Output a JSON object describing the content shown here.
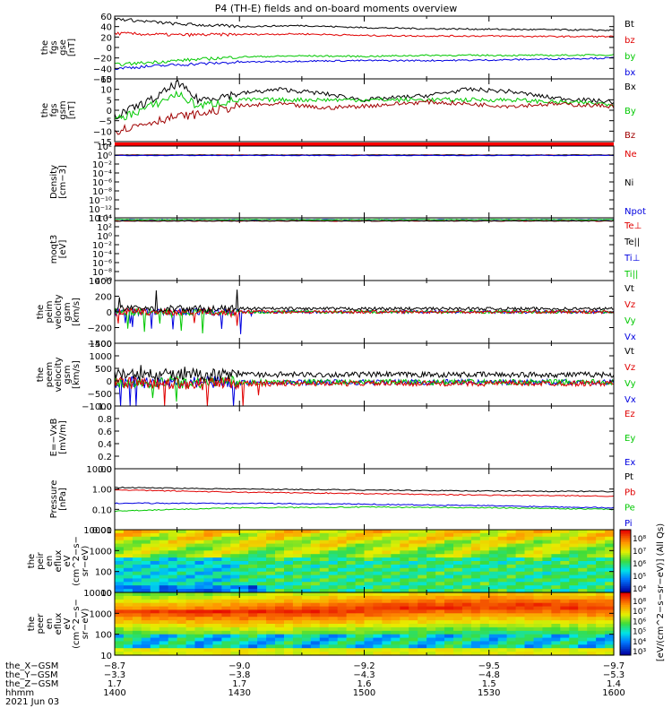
{
  "title": "P4 (TH-E) fields and on-board moments overview",
  "panels": [
    {
      "id": "fgs_gse",
      "ylabel": [
        "the",
        "fgs",
        "gse",
        "[nT]"
      ],
      "ticks": [
        "60",
        "40",
        "20",
        "0",
        "−20",
        "−40",
        "−60"
      ],
      "legend": [
        {
          "text": "Bt",
          "color": "#000000"
        },
        {
          "text": "bz",
          "color": "#e00000"
        },
        {
          "text": "by",
          "color": "#00c800"
        },
        {
          "text": "bx",
          "color": "#0000e0"
        }
      ]
    },
    {
      "id": "fgs_gsm",
      "ylabel": [
        "the",
        "fgs",
        "gsm",
        "[nT]"
      ],
      "ticks": [
        "15",
        "10",
        "5",
        "0",
        "−5",
        "−10",
        "−15"
      ],
      "legend": [
        {
          "text": "Bx",
          "color": "#000000"
        },
        {
          "text": "By",
          "color": "#00c800"
        },
        {
          "text": "Bz",
          "color": "#a00000"
        }
      ]
    },
    {
      "id": "density",
      "ylabel": [
        "Density",
        "[cm−3]"
      ],
      "ticks": [
        "10²",
        "10⁰",
        "10⁻²",
        "10⁻⁴",
        "10⁻⁶",
        "10⁻⁸",
        "10⁻¹⁰",
        "10⁻¹²",
        "10⁻¹⁴"
      ],
      "legend": [
        {
          "text": "Ne",
          "color": "#e00000"
        },
        {
          "text": "Ni",
          "color": "#000000"
        },
        {
          "text": "Npot",
          "color": "#0000e0"
        }
      ]
    },
    {
      "id": "moms_temp",
      "ylabel": [
        "moqt3",
        "[eV]"
      ],
      "ticks": [
        "10⁴",
        "10²",
        "10⁰",
        "10⁻²",
        "10⁻⁴",
        "10⁻⁶",
        "10⁻⁸",
        "10⁻¹⁰"
      ],
      "legend": [
        {
          "text": "Te⊥",
          "color": "#e00000"
        },
        {
          "text": "Te||",
          "color": "#000000"
        },
        {
          "text": "Ti⊥",
          "color": "#0000e0"
        },
        {
          "text": "Ti||",
          "color": "#00c800"
        }
      ]
    },
    {
      "id": "peim_vel",
      "ylabel": [
        "the",
        "peim",
        "velocity",
        "gsm",
        "[km/s]"
      ],
      "ticks": [
        "400",
        "200",
        "0",
        "−200",
        "−400"
      ],
      "legend": [
        {
          "text": "Vt",
          "color": "#000000"
        },
        {
          "text": "Vz",
          "color": "#e00000"
        },
        {
          "text": "Vy",
          "color": "#00c800"
        },
        {
          "text": "Vx",
          "color": "#0000e0"
        }
      ]
    },
    {
      "id": "peem_vel",
      "ylabel": [
        "the",
        "peem",
        "velocity",
        "gsm",
        "[km/s]"
      ],
      "ticks": [
        "1500",
        "1000",
        "500",
        "0",
        "−500",
        "−1000"
      ],
      "legend": [
        {
          "text": "Vt",
          "color": "#000000"
        },
        {
          "text": "Vz",
          "color": "#e00000"
        },
        {
          "text": "Vy",
          "color": "#00c800"
        },
        {
          "text": "Vx",
          "color": "#0000e0"
        }
      ]
    },
    {
      "id": "efield",
      "ylabel": [
        "E=−VxB",
        "[mV/m]"
      ],
      "ticks": [
        "1.0",
        "0.8",
        "0.6",
        "0.4",
        "0.2",
        "0.0"
      ],
      "legend": [
        {
          "text": "Ez",
          "color": "#e00000"
        },
        {
          "text": "Ey",
          "color": "#00c800"
        },
        {
          "text": "Ex",
          "color": "#0000e0"
        }
      ]
    },
    {
      "id": "pressure",
      "ylabel": [
        "Pressure",
        "[nPa]"
      ],
      "ticks": [
        "10.00",
        "1.00",
        "0.10",
        "0.01"
      ],
      "legend": [
        {
          "text": "Pt",
          "color": "#000000"
        },
        {
          "text": "Pb",
          "color": "#e00000"
        },
        {
          "text": "Pe",
          "color": "#00c800"
        },
        {
          "text": "Pi",
          "color": "#0000e0"
        }
      ]
    },
    {
      "id": "peir_spec",
      "ylabel": [
        "the",
        "peir",
        "en",
        "eflux",
        "eV",
        "(cm^2−s−",
        "sr−eV)"
      ],
      "ticks": [
        "10000",
        "1000",
        "100",
        "10"
      ],
      "legend": []
    },
    {
      "id": "peer_spec",
      "ylabel": [
        "the",
        "peer",
        "en",
        "eflux",
        "eV",
        "(cm^2−s−",
        "sr−eV)"
      ],
      "ticks": [
        "10000",
        "1000",
        "100",
        "10"
      ],
      "legend": []
    }
  ],
  "colorbars": [
    {
      "ticks": [
        "10⁸",
        "10⁷",
        "10⁶",
        "10⁵",
        "10⁴"
      ]
    },
    {
      "ticks": [
        "10⁸",
        "10⁷",
        "10⁶",
        "10⁵",
        "10⁴",
        "10³"
      ]
    }
  ],
  "colorbar_label": "[eV/(cm^2−s−sr−eV)] (All Qs)",
  "xaxis_rows": [
    {
      "label": "the_X−GSM",
      "values": [
        "−8.7",
        "−9.0",
        "−9.2",
        "−9.5",
        "−9.7"
      ]
    },
    {
      "label": "the_Y−GSM",
      "values": [
        "−3.3",
        "−3.8",
        "−4.3",
        "−4.8",
        "−5.3"
      ]
    },
    {
      "label": "the_Z−GSM",
      "values": [
        "1.7",
        "1.7",
        "1.6",
        "1.5",
        "1.4"
      ]
    },
    {
      "label": "hhmm",
      "values": [
        "1400",
        "1430",
        "1500",
        "1530",
        "1600"
      ]
    }
  ],
  "date_label": "2021 Jun 03",
  "chart_data": {
    "type": "line",
    "title": "P4 (TH-E) fields and on-board moments overview",
    "x_time_hhmm": [
      "1400",
      "1430",
      "1500",
      "1530",
      "1600"
    ],
    "x_range_minutes": [
      0,
      120
    ],
    "series_data": {
      "fgs_gse": {
        "ylim": [
          -60,
          60
        ],
        "series": [
          {
            "name": "Bt",
            "t": [
              0,
              15,
              30,
              45,
              60,
              75,
              90,
              105,
              120
            ],
            "v": [
              55,
              45,
              40,
              42,
              38,
              36,
              35,
              34,
              33
            ]
          },
          {
            "name": "bz",
            "t": [
              0,
              15,
              30,
              45,
              60,
              75,
              90,
              105,
              120
            ],
            "v": [
              27,
              24,
              25,
              26,
              23,
              22,
              22,
              21,
              21
            ]
          },
          {
            "name": "by",
            "t": [
              0,
              15,
              30,
              45,
              60,
              75,
              90,
              105,
              120
            ],
            "v": [
              -33,
              -25,
              -18,
              -16,
              -17,
              -15,
              -15,
              -15,
              -14
            ]
          },
          {
            "name": "bx",
            "t": [
              0,
              15,
              30,
              45,
              60,
              75,
              90,
              105,
              120
            ],
            "v": [
              -40,
              -33,
              -28,
              -26,
              -25,
              -25,
              -24,
              -22,
              -20
            ]
          }
        ]
      },
      "fgs_gsm": {
        "ylim": [
          -15,
          15
        ],
        "series": [
          {
            "name": "Bx",
            "t": [
              0,
              10,
              15,
              20,
              30,
              40,
              50,
              60,
              75,
              85,
              95,
              105,
              120
            ],
            "v": [
              -3,
              6,
              13,
              5,
              8,
              10,
              8,
              5,
              7,
              10,
              9,
              6,
              4
            ]
          },
          {
            "name": "By",
            "t": [
              0,
              10,
              15,
              20,
              30,
              40,
              50,
              60,
              75,
              85,
              95,
              105,
              120
            ],
            "v": [
              -5,
              3,
              8,
              2,
              5,
              5,
              5,
              5,
              5,
              5,
              5,
              4,
              3
            ]
          },
          {
            "name": "Bz",
            "t": [
              0,
              10,
              15,
              20,
              30,
              40,
              50,
              60,
              75,
              85,
              95,
              105,
              120
            ],
            "v": [
              -10,
              -5,
              -3,
              -2,
              2,
              3,
              1,
              2,
              4,
              3,
              2,
              3,
              2
            ]
          }
        ]
      },
      "density": {
        "ylog": true,
        "ylim": [
          1e-14,
          100.0
        ],
        "series": [
          {
            "name": "Ne",
            "value": 1.0
          },
          {
            "name": "Ni",
            "value": 1.0
          },
          {
            "name": "Npot",
            "value": 0.8
          }
        ]
      },
      "moms_temp": {
        "ylog": true,
        "ylim": [
          1e-10,
          10000.0
        ],
        "series": [
          {
            "name": "Te⊥",
            "value": 2000
          },
          {
            "name": "Te||",
            "value": 2000
          },
          {
            "name": "Ti⊥",
            "value": 4000
          },
          {
            "name": "Ti||",
            "value": 4000
          }
        ]
      },
      "peim_vel": {
        "ylim": [
          -400,
          400
        ],
        "series": [
          {
            "name": "Vt",
            "baseline": 40
          },
          {
            "name": "Vz",
            "baseline": 0
          },
          {
            "name": "Vy",
            "baseline": 0
          },
          {
            "name": "Vx",
            "baseline": 0
          }
        ]
      },
      "peem_vel": {
        "ylim": [
          -1000,
          1500
        ],
        "series": [
          {
            "name": "Vt",
            "baseline": 250
          },
          {
            "name": "Vz",
            "baseline": -100
          },
          {
            "name": "Vy",
            "baseline": -50
          },
          {
            "name": "Vx",
            "baseline": -50
          }
        ]
      },
      "efield": {
        "ylim": [
          0,
          1
        ],
        "series": []
      },
      "pressure": {
        "ylog": true,
        "ylim": [
          0.01,
          10
        ],
        "series": [
          {
            "name": "Pt",
            "t": [
              0,
              30,
              60,
              90,
              120
            ],
            "v": [
              1.2,
              1.0,
              0.9,
              0.8,
              0.75
            ]
          },
          {
            "name": "Pb",
            "t": [
              0,
              30,
              60,
              90,
              120
            ],
            "v": [
              0.9,
              0.7,
              0.6,
              0.5,
              0.45
            ]
          },
          {
            "name": "Pe",
            "t": [
              0,
              30,
              60,
              90,
              120
            ],
            "v": [
              0.08,
              0.12,
              0.13,
              0.12,
              0.1
            ]
          },
          {
            "name": "Pi",
            "t": [
              0,
              30,
              60,
              90,
              120
            ],
            "v": [
              0.2,
              0.2,
              0.18,
              0.15,
              0.12
            ]
          }
        ]
      },
      "peir_spec": {
        "type": "heatmap",
        "yrange_eV": [
          5,
          25000
        ]
      },
      "peer_spec": {
        "type": "heatmap",
        "yrange_eV": [
          5,
          25000
        ]
      }
    }
  }
}
